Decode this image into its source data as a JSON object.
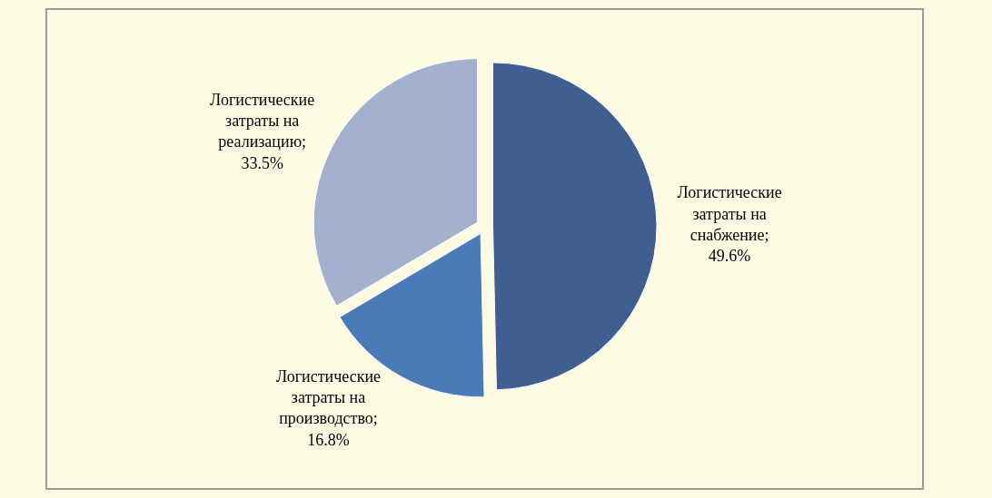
{
  "chart_data": {
    "type": "pie",
    "categories": [
      "Логистические затраты на снабжение",
      "Логистические затраты на производство",
      "Логистические затраты на реализацию"
    ],
    "values": [
      49.6,
      16.8,
      33.5
    ],
    "value_labels": [
      "; 49.6%",
      "; 16.8%",
      "; 33.5%"
    ],
    "colors": [
      "#3e5f8f",
      "#4a7ab8",
      "#a3b1cf"
    ],
    "legend": false
  }
}
